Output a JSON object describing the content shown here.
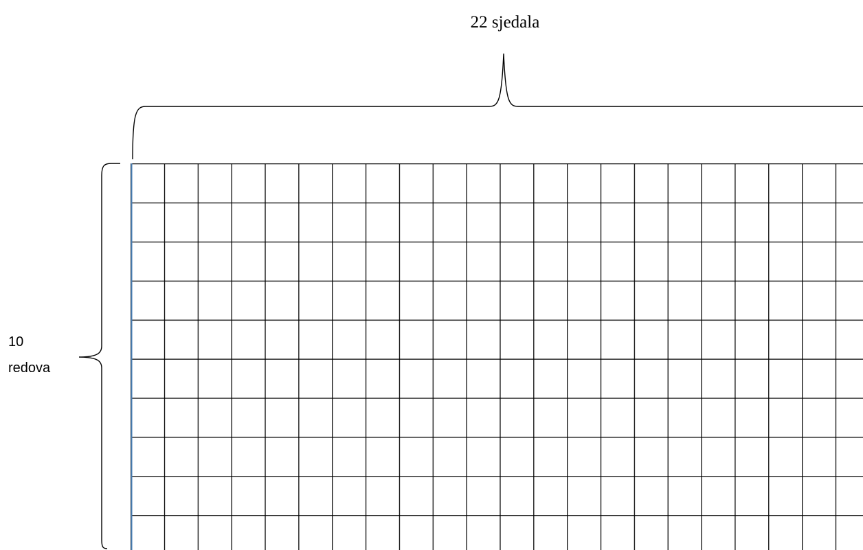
{
  "labels": {
    "top": "22 sjedala",
    "left": [
      "10",
      "redova"
    ]
  }
}
